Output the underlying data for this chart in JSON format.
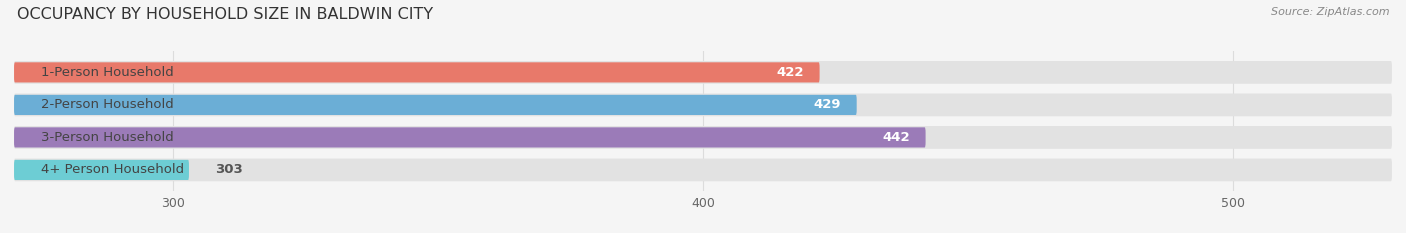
{
  "title": "OCCUPANCY BY HOUSEHOLD SIZE IN BALDWIN CITY",
  "source": "Source: ZipAtlas.com",
  "categories": [
    "1-Person Household",
    "2-Person Household",
    "3-Person Household",
    "4+ Person Household"
  ],
  "values": [
    422,
    429,
    442,
    303
  ],
  "bar_colors": [
    "#e8796a",
    "#6baed6",
    "#9b7bb8",
    "#6dcdd4"
  ],
  "value_label_colors": [
    "white",
    "white",
    "white",
    "#555555"
  ],
  "xlim_left": 270,
  "xlim_right": 530,
  "xticks": [
    300,
    400,
    500
  ],
  "background_color": "#f5f5f5",
  "bar_bg_color": "#e8e8e8",
  "title_fontsize": 11.5,
  "label_fontsize": 9.5,
  "value_fontsize": 9.5,
  "bar_height": 0.62,
  "figsize": [
    14.06,
    2.33
  ],
  "dpi": 100
}
